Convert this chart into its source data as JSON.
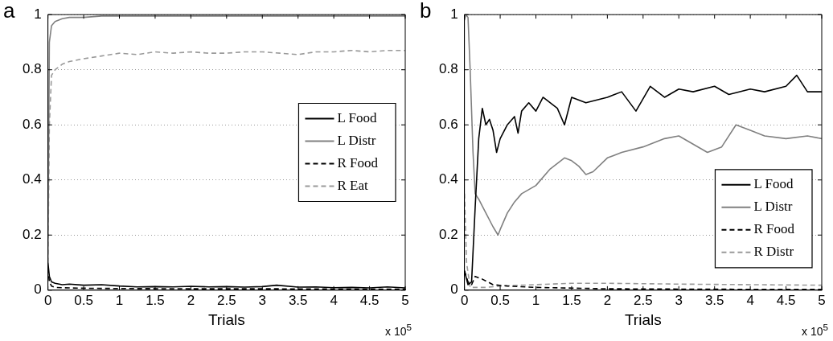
{
  "chart_data": [
    {
      "type": "line",
      "title": "a",
      "xlabel": "Trials",
      "annotations": [
        "x 10$^{5}$"
      ],
      "xlim": [
        0,
        5
      ],
      "xticks": [
        0,
        0.5,
        1,
        1.5,
        2,
        2.5,
        3,
        3.5,
        4,
        4.5,
        5
      ],
      "ylim": [
        0,
        1
      ],
      "yticks": [
        0,
        0.2,
        0.4,
        0.6,
        0.8,
        1
      ],
      "grid": "y",
      "legend": "right",
      "marker": "none",
      "series": [
        {
          "name": "L Food",
          "color": "#000000",
          "line_style": "solid",
          "x": [
            0,
            0.02,
            0.05,
            0.1,
            0.2,
            0.3,
            0.5,
            0.75,
            1,
            1.25,
            1.5,
            1.75,
            2,
            2.25,
            2.5,
            2.75,
            3,
            3.2,
            3.5,
            3.75,
            4,
            4.25,
            4.5,
            4.75,
            5
          ],
          "values": [
            0.1,
            0.05,
            0.03,
            0.025,
            0.02,
            0.022,
            0.018,
            0.02,
            0.015,
            0.012,
            0.013,
            0.012,
            0.014,
            0.012,
            0.013,
            0.011,
            0.013,
            0.018,
            0.011,
            0.012,
            0.009,
            0.01,
            0.008,
            0.012,
            0.008
          ]
        },
        {
          "name": "L Distr",
          "color": "#808080",
          "line_style": "solid",
          "x": [
            0,
            0.02,
            0.05,
            0.1,
            0.2,
            0.3,
            0.5,
            0.75,
            1,
            1.5,
            2,
            2.5,
            3,
            3.5,
            4,
            4.5,
            5
          ],
          "values": [
            0.1,
            0.9,
            0.96,
            0.975,
            0.985,
            0.99,
            0.99,
            0.995,
            0.995,
            0.995,
            0.995,
            0.995,
            0.995,
            0.995,
            0.995,
            0.995,
            0.995
          ]
        },
        {
          "name": "R Food",
          "color": "#000000",
          "line_style": "dashed",
          "x": [
            0,
            0.02,
            0.05,
            0.1,
            0.3,
            0.5,
            1,
            2,
            3,
            4,
            5
          ],
          "values": [
            0.08,
            0.03,
            0.015,
            0.01,
            0.008,
            0.007,
            0.006,
            0.005,
            0.005,
            0.004,
            0.004
          ]
        },
        {
          "name": "R Eat",
          "color": "#9a9a9a",
          "line_style": "dashed",
          "x": [
            0,
            0.02,
            0.05,
            0.1,
            0.2,
            0.3,
            0.5,
            0.75,
            1,
            1.25,
            1.5,
            1.75,
            2,
            2.25,
            2.5,
            2.75,
            3,
            3.25,
            3.5,
            3.75,
            4,
            4.25,
            4.5,
            4.75,
            5
          ],
          "values": [
            0.1,
            0.6,
            0.78,
            0.8,
            0.82,
            0.83,
            0.84,
            0.85,
            0.86,
            0.855,
            0.865,
            0.86,
            0.865,
            0.86,
            0.86,
            0.865,
            0.865,
            0.86,
            0.855,
            0.865,
            0.865,
            0.87,
            0.865,
            0.87,
            0.87
          ]
        }
      ]
    },
    {
      "type": "line",
      "title": "b",
      "xlabel": "Trials",
      "annotations": [
        "x 10$^{5}$"
      ],
      "xlim": [
        0,
        5
      ],
      "xticks": [
        0,
        0.5,
        1,
        1.5,
        2,
        2.5,
        3,
        3.5,
        4,
        4.5,
        5
      ],
      "ylim": [
        0,
        1
      ],
      "yticks": [
        0,
        0.2,
        0.4,
        0.6,
        0.8,
        1
      ],
      "grid": "y",
      "legend": "bottom right",
      "marker": "none",
      "series": [
        {
          "name": "L Food",
          "color": "#000000",
          "line_style": "solid",
          "x": [
            0,
            0.05,
            0.1,
            0.15,
            0.2,
            0.25,
            0.3,
            0.35,
            0.4,
            0.45,
            0.5,
            0.6,
            0.7,
            0.75,
            0.8,
            0.9,
            1,
            1.1,
            1.3,
            1.4,
            1.5,
            1.7,
            2,
            2.2,
            2.4,
            2.6,
            2.8,
            3,
            3.2,
            3.5,
            3.7,
            4,
            4.2,
            4.5,
            4.65,
            4.8,
            5
          ],
          "values": [
            0.07,
            0.02,
            0.03,
            0.3,
            0.55,
            0.66,
            0.6,
            0.62,
            0.58,
            0.5,
            0.55,
            0.6,
            0.63,
            0.57,
            0.65,
            0.68,
            0.65,
            0.7,
            0.66,
            0.6,
            0.7,
            0.68,
            0.7,
            0.72,
            0.65,
            0.74,
            0.7,
            0.73,
            0.72,
            0.74,
            0.71,
            0.73,
            0.72,
            0.74,
            0.78,
            0.72,
            0.72
          ]
        },
        {
          "name": "L Distr",
          "color": "#808080",
          "line_style": "solid",
          "x": [
            0,
            0.02,
            0.05,
            0.08,
            0.12,
            0.15,
            0.2,
            0.3,
            0.4,
            0.47,
            0.5,
            0.6,
            0.7,
            0.8,
            1,
            1.2,
            1.4,
            1.5,
            1.6,
            1.7,
            1.8,
            2,
            2.2,
            2.5,
            2.8,
            3,
            3.2,
            3.4,
            3.6,
            3.8,
            4,
            4.2,
            4.5,
            4.8,
            5
          ],
          "values": [
            0.98,
            1,
            0.99,
            0.8,
            0.5,
            0.35,
            0.33,
            0.28,
            0.23,
            0.2,
            0.22,
            0.28,
            0.32,
            0.35,
            0.38,
            0.44,
            0.48,
            0.47,
            0.45,
            0.42,
            0.43,
            0.48,
            0.5,
            0.52,
            0.55,
            0.56,
            0.53,
            0.5,
            0.52,
            0.6,
            0.58,
            0.56,
            0.55,
            0.56,
            0.55
          ]
        },
        {
          "name": "R Food",
          "color": "#000000",
          "line_style": "dashed",
          "x": [
            0,
            0.05,
            0.1,
            0.15,
            0.25,
            0.4,
            0.6,
            1,
            2,
            3,
            4,
            5
          ],
          "values": [
            0.07,
            0.03,
            0.02,
            0.05,
            0.04,
            0.02,
            0.015,
            0.01,
            0.005,
            0.004,
            0.003,
            0.003
          ]
        },
        {
          "name": "R Distr",
          "color": "#9a9a9a",
          "line_style": "dashed",
          "x": [
            0,
            0.03,
            0.08,
            0.15,
            0.3,
            0.5,
            1,
            1.5,
            2,
            3,
            4,
            5
          ],
          "values": [
            0.35,
            0.1,
            0.01,
            0.01,
            0.01,
            0.015,
            0.02,
            0.025,
            0.025,
            0.022,
            0.02,
            0.018
          ]
        }
      ]
    }
  ]
}
